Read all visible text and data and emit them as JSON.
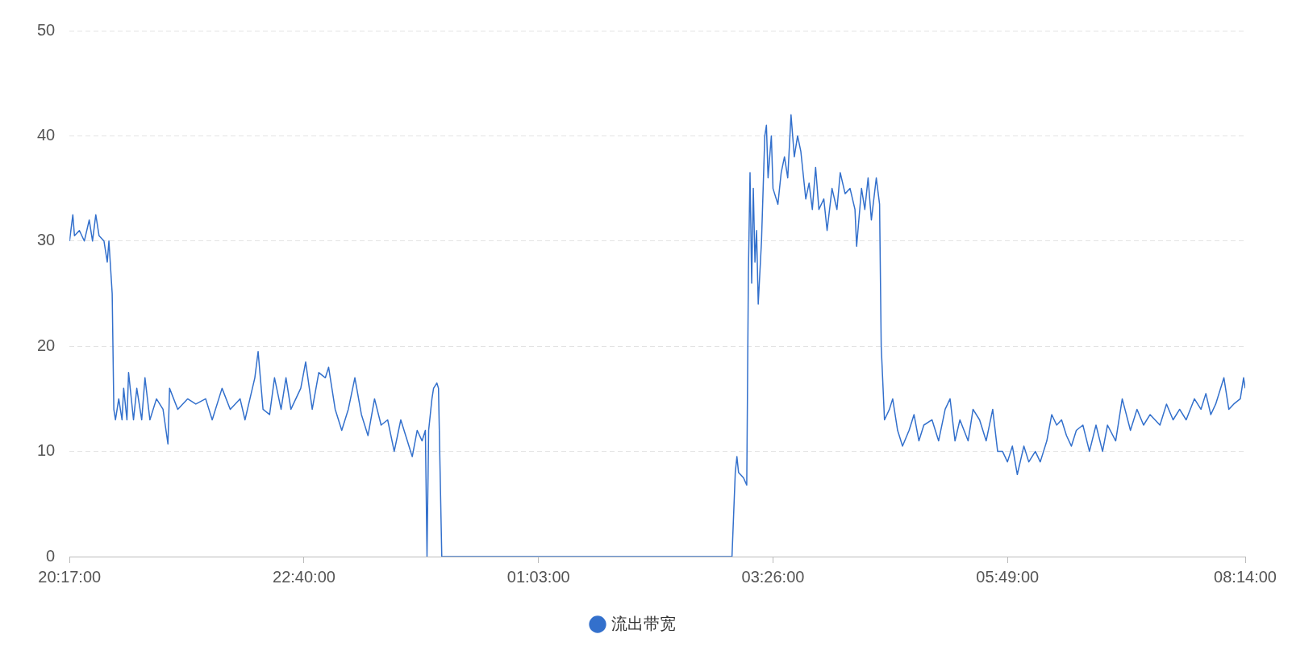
{
  "chart_data": {
    "type": "line",
    "xlim": [
      "--01-01T20:17",
      "--01-02T08:14"
    ],
    "xticks": [
      {
        "value": "--01-01T20:17",
        "label": "20:17:00"
      },
      {
        "value": "--01-01T22:40",
        "label": "22:40:00"
      },
      {
        "value": "--01-02T01:03",
        "label": "01:03:00"
      },
      {
        "value": "--01-02T03:26",
        "label": "03:26:00"
      },
      {
        "value": "--01-02T05:49",
        "label": "05:49:00"
      },
      {
        "value": "--01-02T08:14",
        "label": "08:14:00"
      }
    ],
    "ylim": [
      0,
      50
    ],
    "yticks": [
      0,
      10,
      20,
      30,
      40,
      50
    ],
    "grid": "y",
    "legend": "bottom",
    "marker": "none",
    "line_style": "solid",
    "series": [
      {
        "name": "流出带宽",
        "color": "#3370cc",
        "x": [
          "--01-01T20:17",
          "--01-01T20:19",
          "--01-01T20:20",
          "--01-01T20:23",
          "--01-01T20:26",
          "--01-01T20:29",
          "--01-01T20:31",
          "--01-01T20:33",
          "--01-01T20:35",
          "--01-01T20:38",
          "--01-01T20:40",
          "--01-01T20:41",
          "--01-01T20:43",
          "--01-01T20:44",
          "--01-01T20:45",
          "--01-01T20:47",
          "--01-01T20:49",
          "--01-01T20:50",
          "--01-01T20:52",
          "--01-01T20:53",
          "--01-01T20:56",
          "--01-01T20:58",
          "--01-01T21:01",
          "--01-01T21:03",
          "--01-01T21:06",
          "--01-01T21:10",
          "--01-01T21:14",
          "--01-01T21:17",
          "--01-01T21:18",
          "--01-01T21:23",
          "--01-01T21:29",
          "--01-01T21:34",
          "--01-01T21:40",
          "--01-01T21:44",
          "--01-01T21:50",
          "--01-01T21:55",
          "--01-01T22:01",
          "--01-01T22:04",
          "--01-01T22:10",
          "--01-01T22:12",
          "--01-01T22:15",
          "--01-01T22:19",
          "--01-01T22:22",
          "--01-01T22:26",
          "--01-01T22:29",
          "--01-01T22:32",
          "--01-01T22:38",
          "--01-01T22:41",
          "--01-01T22:45",
          "--01-01T22:49",
          "--01-01T22:53",
          "--01-01T22:55",
          "--01-01T22:59",
          "--01-01T23:03",
          "--01-01T23:07",
          "--01-01T23:11",
          "--01-01T23:15",
          "--01-01T23:19",
          "--01-01T23:23",
          "--01-01T23:27",
          "--01-01T23:31",
          "--01-01T23:35",
          "--01-01T23:39",
          "--01-01T23:43",
          "--01-01T23:46",
          "--01-01T23:49",
          "--01-01T23:52",
          "--01-01T23:54",
          "--01-01T23:55",
          "--01-01T23:56",
          "--01-01T23:58",
          "--01-01T23:59",
          "--01-02T00:01",
          "--01-02T00:02",
          "--01-02T00:04",
          "--01-02T00:11",
          "--01-02T00:48",
          "--01-02T01:25",
          "--01-02T02:12",
          "--01-02T03:01",
          "--01-02T03:03",
          "--01-02T03:04",
          "--01-02T03:05",
          "--01-02T03:08",
          "--01-02T03:10",
          "--01-02T03:11",
          "--01-02T03:12",
          "--01-02T03:13",
          "--01-02T03:14",
          "--01-02T03:15",
          "--01-02T03:16",
          "--01-02T03:17",
          "--01-02T03:19",
          "--01-02T03:20",
          "--01-02T03:21",
          "--01-02T03:22",
          "--01-02T03:23",
          "--01-02T03:25",
          "--01-02T03:26",
          "--01-02T03:29",
          "--01-02T03:31",
          "--01-02T03:33",
          "--01-02T03:35",
          "--01-02T03:37",
          "--01-02T03:39",
          "--01-02T03:41",
          "--01-02T03:43",
          "--01-02T03:46",
          "--01-02T03:48",
          "--01-02T03:50",
          "--01-02T03:52",
          "--01-02T03:54",
          "--01-02T03:57",
          "--01-02T03:59",
          "--01-02T04:02",
          "--01-02T04:05",
          "--01-02T04:07",
          "--01-02T04:10",
          "--01-02T04:13",
          "--01-02T04:16",
          "--01-02T04:17",
          "--01-02T04:20",
          "--01-02T04:22",
          "--01-02T04:24",
          "--01-02T04:26",
          "--01-02T04:29",
          "--01-02T04:31",
          "--01-02T04:32",
          "--01-02T04:34",
          "--01-02T04:37",
          "--01-02T04:39",
          "--01-02T04:42",
          "--01-02T04:45",
          "--01-02T04:49",
          "--01-02T04:52",
          "--01-02T04:55",
          "--01-02T04:58",
          "--01-02T05:03",
          "--01-02T05:07",
          "--01-02T05:11",
          "--01-02T05:14",
          "--01-02T05:17",
          "--01-02T05:20",
          "--01-02T05:25",
          "--01-02T05:28",
          "--01-02T05:32",
          "--01-02T05:36",
          "--01-02T05:40",
          "--01-02T05:43",
          "--01-02T05:46",
          "--01-02T05:49",
          "--01-02T05:52",
          "--01-02T05:55",
          "--01-02T05:59",
          "--01-02T06:02",
          "--01-02T06:06",
          "--01-02T06:09",
          "--01-02T06:13",
          "--01-02T06:16",
          "--01-02T06:19",
          "--01-02T06:22",
          "--01-02T06:25",
          "--01-02T06:28",
          "--01-02T06:31",
          "--01-02T06:35",
          "--01-02T06:39",
          "--01-02T06:43",
          "--01-02T06:47",
          "--01-02T06:50",
          "--01-02T06:55",
          "--01-02T06:59",
          "--01-02T07:04",
          "--01-02T07:08",
          "--01-02T07:12",
          "--01-02T07:16",
          "--01-02T07:22",
          "--01-02T07:26",
          "--01-02T07:30",
          "--01-02T07:34",
          "--01-02T07:38",
          "--01-02T07:43",
          "--01-02T07:47",
          "--01-02T07:50",
          "--01-02T07:53",
          "--01-02T07:56",
          "--01-02T08:01",
          "--01-02T08:04",
          "--01-02T08:07",
          "--01-02T08:11",
          "--01-02T08:13",
          "--01-02T08:14"
        ],
        "values": [
          30,
          32.5,
          30.5,
          31,
          30,
          32,
          30,
          32.5,
          30.5,
          30,
          28,
          30,
          25,
          14,
          13,
          15,
          13,
          16,
          13,
          17.5,
          13,
          16,
          13,
          17,
          13,
          15,
          14,
          10.7,
          16,
          14,
          15,
          14.5,
          15,
          13,
          16,
          14,
          15,
          13,
          17,
          19.5,
          14,
          13.5,
          17,
          14,
          17,
          14,
          16,
          18.5,
          14,
          17.5,
          17,
          18,
          14,
          12,
          14,
          17,
          13.5,
          11.5,
          15,
          12.5,
          13,
          10,
          13,
          11,
          9.5,
          12,
          11,
          12,
          0,
          12,
          15,
          16,
          16.5,
          16,
          0,
          0,
          0,
          0,
          0,
          0,
          8,
          9.5,
          8,
          7.5,
          6.8,
          27,
          36.5,
          26,
          35,
          28,
          31,
          24,
          30,
          35,
          40,
          41,
          36,
          40,
          35,
          33.5,
          36.5,
          38,
          36,
          42,
          38,
          40,
          38.5,
          34,
          35.5,
          33,
          37,
          33,
          34,
          31,
          35,
          33,
          36.5,
          34.5,
          35,
          33,
          29.5,
          35,
          33,
          36,
          32,
          36,
          33.5,
          20,
          13,
          14,
          15,
          12,
          10.5,
          12,
          13.5,
          11,
          12.5,
          13,
          11,
          14,
          15,
          11,
          13,
          11,
          14,
          13,
          11,
          14,
          10,
          10,
          9,
          10.5,
          7.8,
          10.5,
          9,
          10,
          9,
          11,
          13.5,
          12.5,
          13,
          11.5,
          10.5,
          12,
          12.5,
          10,
          12.5,
          10,
          12.5,
          11,
          15,
          12,
          14,
          12.5,
          13.5,
          12.5,
          14.5,
          13,
          14,
          13,
          15,
          14,
          15.5,
          13.5,
          14.5,
          17,
          14,
          14.5,
          15,
          17,
          16
        ]
      }
    ]
  }
}
